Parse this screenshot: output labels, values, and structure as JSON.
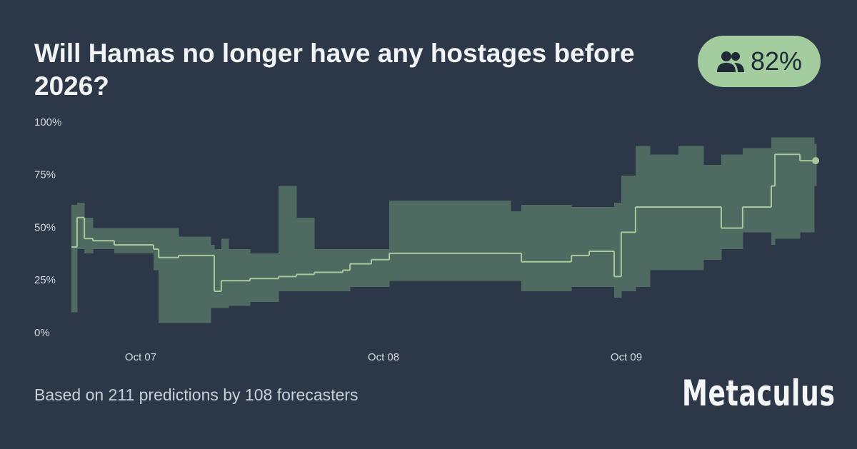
{
  "title": "Will Hamas no longer have any hostages before 2026?",
  "badge_label": "82%",
  "footer": "Based on 211 predictions by 108 forecasters",
  "brand": "Metaculus",
  "chart_data": {
    "type": "line",
    "x": [
      6.715,
      6.738,
      6.768,
      6.803,
      6.891,
      7.053,
      7.074,
      7.156,
      7.288,
      7.303,
      7.332,
      7.362,
      7.45,
      7.568,
      7.641,
      7.715,
      7.832,
      7.862,
      7.95,
      8.024,
      8.524,
      8.568,
      8.774,
      8.847,
      8.95,
      8.979,
      9.038,
      9.097,
      9.215,
      9.318,
      9.391,
      9.479,
      9.597,
      9.612,
      9.715,
      9.774
    ],
    "values": [
      41,
      55,
      45,
      44,
      42,
      40,
      36,
      37,
      37,
      20,
      25,
      25,
      26,
      27,
      28,
      29,
      30,
      33,
      35,
      38,
      38,
      34,
      37,
      39,
      27,
      48,
      60,
      60,
      60,
      60,
      50,
      60,
      70,
      85,
      82,
      82
    ],
    "lower": [
      10,
      40,
      38,
      40,
      38,
      30,
      5,
      5,
      12,
      12,
      12,
      13,
      15,
      20,
      20,
      20,
      20,
      22,
      22,
      25,
      25,
      20,
      22,
      22,
      17,
      20,
      22,
      30,
      30,
      35,
      40,
      48,
      42,
      45,
      48,
      70
    ],
    "upper": [
      61,
      62,
      55,
      50,
      50,
      50,
      50,
      46,
      42,
      40,
      45,
      40,
      38,
      70,
      55,
      40,
      40,
      40,
      40,
      63,
      58,
      61,
      60,
      60,
      62,
      75,
      89,
      85,
      89,
      80,
      85,
      88,
      93,
      93,
      93,
      90
    ],
    "line_color": "#a9c99c",
    "band_color": "#4f6b61",
    "xlim": [
      6.7,
      9.8
    ],
    "ylim": [
      0,
      100
    ],
    "xticks": [
      {
        "value": 7,
        "label": "Oct 07"
      },
      {
        "value": 8,
        "label": "Oct 08"
      },
      {
        "value": 9,
        "label": "Oct 09"
      }
    ],
    "yticks": [
      {
        "value": 0,
        "label": "0%"
      },
      {
        "value": 25,
        "label": "25%"
      },
      {
        "value": 50,
        "label": "50%"
      },
      {
        "value": 75,
        "label": "75%"
      },
      {
        "value": 100,
        "label": "100%"
      }
    ]
  }
}
